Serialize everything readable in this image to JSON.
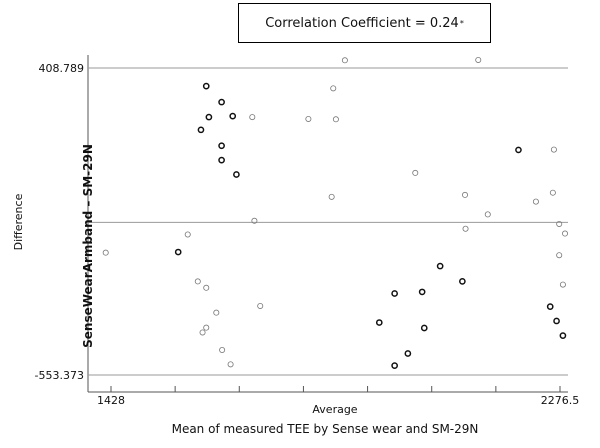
{
  "annotation": {
    "text": "Correlation Coefficient = 0.24",
    "marker": "*"
  },
  "subtitle": "Mean of measured TEE by Sense wear and SM-29N",
  "chart_data": {
    "type": "scatter",
    "xlabel": "Average",
    "ylabel_inner": "Difference",
    "ylabel_outer": "SenseWearArmband – SM-29N",
    "xlim": [
      1428,
      2276.5
    ],
    "ylim": [
      -553.373,
      408.789
    ],
    "x_tick_labels": [
      "1428",
      "2276.5"
    ],
    "y_tick_labels": [
      "408.789",
      "-553.373"
    ],
    "reference_lines": [
      408.789,
      -75,
      -553.373
    ],
    "grid": false,
    "series": [
      {
        "style": "bold",
        "points": [
          [
            1608,
            352
          ],
          [
            1637,
            302
          ],
          [
            1658,
            258
          ],
          [
            1613,
            255
          ],
          [
            1637,
            165
          ],
          [
            1637,
            120
          ],
          [
            1665,
            75
          ],
          [
            1598,
            215
          ],
          [
            1555,
            -168
          ],
          [
            2198,
            152
          ],
          [
            2050,
            -212
          ],
          [
            2092,
            -260
          ],
          [
            2258,
            -339
          ],
          [
            2270,
            -384
          ],
          [
            2282,
            -430
          ],
          [
            2016,
            -293
          ],
          [
            1964,
            -298
          ],
          [
            1935,
            -389
          ],
          [
            1989,
            -486
          ],
          [
            1964,
            -524
          ],
          [
            2020,
            -406
          ]
        ]
      },
      {
        "style": "light",
        "points": [
          [
            1418,
            -170
          ],
          [
            1573,
            -113
          ],
          [
            1592,
            -260
          ],
          [
            1608,
            -280
          ],
          [
            1627,
            -358
          ],
          [
            1601,
            -420
          ],
          [
            1608,
            -405
          ],
          [
            1638,
            -475
          ],
          [
            1654,
            -520
          ],
          [
            1699,
            -70
          ],
          [
            1710,
            -337
          ],
          [
            1695,
            255
          ],
          [
            1801,
            249
          ],
          [
            1848,
            345
          ],
          [
            1853,
            248
          ],
          [
            1870,
            433
          ],
          [
            1845,
            5
          ],
          [
            2003,
            80
          ],
          [
            2097,
            11
          ],
          [
            2122,
            434
          ],
          [
            2140,
            -50
          ],
          [
            2098,
            -95
          ],
          [
            2265,
            153
          ],
          [
            2231,
            -10
          ],
          [
            2263,
            18
          ],
          [
            2275,
            -80
          ],
          [
            2286,
            -110
          ],
          [
            2275,
            -178
          ],
          [
            2282,
            -270
          ]
        ]
      }
    ]
  },
  "colors": {
    "bold_marker": "#111111",
    "light_marker": "#777777",
    "axis": "#555555",
    "reference_line": "#9a9a9a",
    "text": "#111111"
  }
}
